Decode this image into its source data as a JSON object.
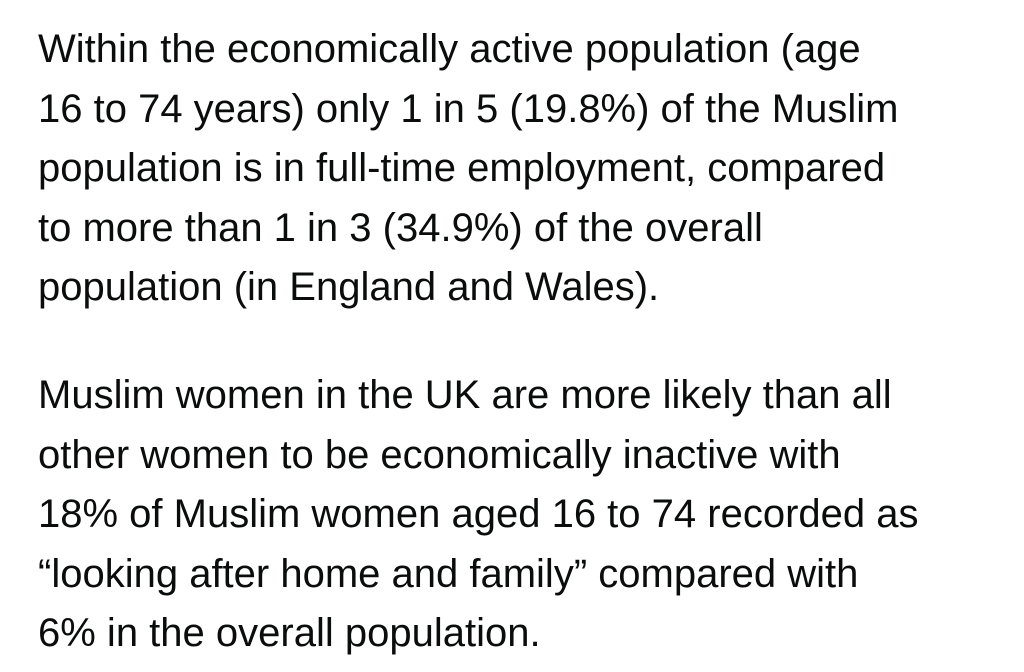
{
  "paragraphs": [
    {
      "lines": [
        "Within the economically active population (age",
        "16 to 74 years) only 1 in 5 (19.8%) of the Muslim",
        "population is in full-time employment, compared",
        "to more than 1 in 3 (34.9%) of the overall",
        "population (in England and Wales)."
      ]
    },
    {
      "lines": [
        "Muslim women in the UK are more likely than all",
        "other women to be economically inactive with",
        "18% of Muslim women aged 16 to 74 recorded as",
        "“looking after home and family” compared with",
        "6% in the overall population."
      ]
    }
  ]
}
